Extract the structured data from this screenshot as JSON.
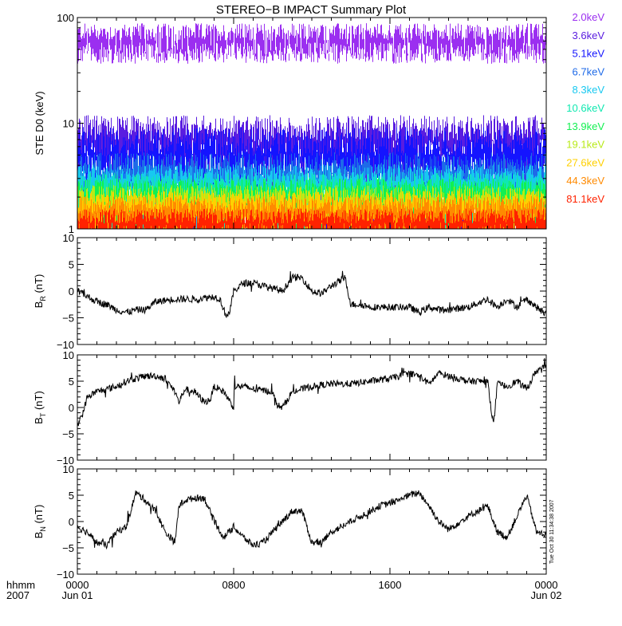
{
  "figure": {
    "title": "STEREO−B IMPACT Summary Plot",
    "timestamp": "Tue Oct 30 11:34:38 2007"
  },
  "xaxis": {
    "row1_label": "hhmm",
    "row2_label": "2007",
    "range_hours": [
      0,
      24
    ],
    "ticks": [
      {
        "hour": 0,
        "label": "0000",
        "sublabel": "Jun 01"
      },
      {
        "hour": 8,
        "label": "0800",
        "sublabel": ""
      },
      {
        "hour": 16,
        "label": "1600",
        "sublabel": ""
      },
      {
        "hour": 24,
        "label": "0000",
        "sublabel": "Jun 02"
      }
    ]
  },
  "chart_data": [
    {
      "type": "line",
      "panel": "ste",
      "ylabel": "STE D0 (keV)",
      "yscale": "log",
      "ylim": [
        1,
        100
      ],
      "yticks": [
        1,
        10,
        100
      ],
      "ytick_labels": [
        "1",
        "10",
        "100"
      ],
      "channels": [
        {
          "name": "2.0keV",
          "color": "#9b2ff0",
          "base": 65,
          "spread": 0.12,
          "dips": 0.4
        },
        {
          "name": "3.6keV",
          "color": "#5a1de0",
          "base": 7.5,
          "spread": 0.18,
          "dips": 0.3
        },
        {
          "name": "5.1keV",
          "color": "#1414ff",
          "base": 5.5,
          "spread": 0.2,
          "dips": 0.3
        },
        {
          "name": "6.7keV",
          "color": "#1e6ae8",
          "base": 3.6,
          "spread": 0.15,
          "dips": 0.3
        },
        {
          "name": "8.3keV",
          "color": "#17c8f0",
          "base": 3.0,
          "spread": 0.12,
          "dips": 0.3
        },
        {
          "name": "10.6keV",
          "color": "#0fe8b0",
          "base": 2.5,
          "spread": 0.12,
          "dips": 0.3
        },
        {
          "name": "13.9keV",
          "color": "#12f050",
          "base": 2.2,
          "spread": 0.12,
          "dips": 0.3
        },
        {
          "name": "19.1keV",
          "color": "#b8ea18",
          "base": 1.9,
          "spread": 0.12,
          "dips": 0.3
        },
        {
          "name": "27.6keV",
          "color": "#ffd000",
          "base": 1.7,
          "spread": 0.12,
          "dips": 0.3
        },
        {
          "name": "44.3keV",
          "color": "#ff8a00",
          "base": 1.5,
          "spread": 0.12,
          "dips": 0.3
        },
        {
          "name": "81.1keV",
          "color": "#ff2200",
          "base": 1.2,
          "spread": 0.1,
          "dips": 0.3
        }
      ]
    },
    {
      "type": "line",
      "panel": "br",
      "ylabel_main": "B",
      "ylabel_sub": "R",
      "ylabel_unit": "(nT)",
      "ylim": [
        -10,
        10
      ],
      "yticks": [
        -10,
        -5,
        0,
        5,
        10
      ],
      "ytick_labels": [
        "−10",
        "−5",
        "0",
        "5",
        "10"
      ],
      "x": [
        0,
        0.5,
        1,
        1.5,
        2,
        2.5,
        3,
        3.5,
        4,
        5,
        6,
        7,
        7.3,
        7.6,
        7.8,
        8,
        8.5,
        9,
        9.5,
        10,
        10.5,
        11,
        11.5,
        12,
        12.5,
        13,
        13.5,
        13.7,
        14,
        14.5,
        15,
        16,
        17,
        17.5,
        18,
        18.5,
        19,
        20,
        21,
        21.5,
        22,
        22.5,
        23,
        23.5,
        24
      ],
      "y": [
        0,
        -1,
        -2,
        -2.5,
        -3.5,
        -4,
        -3.5,
        -3.5,
        -2,
        -1.5,
        -1.5,
        -1,
        -1.5,
        -4.5,
        -4,
        0,
        1.5,
        1.5,
        1,
        0.5,
        0,
        2.5,
        2.5,
        0,
        -0.5,
        1,
        2,
        2.5,
        -2.5,
        -2.5,
        -3,
        -3,
        -3,
        -4,
        -3,
        -3.5,
        -3.5,
        -3,
        -1.5,
        -3,
        -1.5,
        -3,
        -1.5,
        -3,
        -4.5
      ]
    },
    {
      "type": "line",
      "panel": "bt",
      "ylabel_main": "B",
      "ylabel_sub": "T",
      "ylabel_unit": "(nT)",
      "ylim": [
        -10,
        10
      ],
      "yticks": [
        -10,
        -5,
        0,
        5,
        10
      ],
      "ytick_labels": [
        "−10",
        "−5",
        "0",
        "5",
        "10"
      ],
      "x": [
        0,
        0.3,
        0.5,
        1,
        1.5,
        2,
        2.5,
        3,
        3.5,
        4,
        4.5,
        5,
        5.2,
        5.5,
        6,
        6.5,
        6.8,
        7,
        7.5,
        8,
        8,
        8.5,
        9,
        10,
        10.2,
        10.5,
        11,
        11.5,
        12,
        13,
        14,
        15,
        16,
        17,
        17.5,
        18,
        18.5,
        19,
        20,
        21,
        21.3,
        21.5,
        22,
        22.5,
        23,
        23.5,
        24
      ],
      "y": [
        -3,
        -1,
        2,
        3,
        3.5,
        4,
        5,
        5.5,
        6,
        6,
        5.5,
        3,
        1,
        3.5,
        3,
        1,
        1.5,
        4,
        3,
        0,
        4,
        4,
        3.5,
        3,
        0.5,
        0,
        3,
        3.5,
        4,
        4.5,
        4.5,
        5,
        5.5,
        6.5,
        6,
        4.5,
        6.5,
        6,
        5,
        5,
        -3.5,
        4.5,
        4,
        5,
        3.5,
        7,
        8
      ]
    },
    {
      "type": "line",
      "panel": "bn",
      "ylabel_main": "B",
      "ylabel_sub": "N",
      "ylabel_unit": "(nT)",
      "ylim": [
        -10,
        10
      ],
      "yticks": [
        -10,
        -5,
        0,
        5,
        10
      ],
      "ytick_labels": [
        "−10",
        "−5",
        "0",
        "5",
        "10"
      ],
      "x": [
        0,
        0.5,
        1,
        1.5,
        2,
        2.5,
        3,
        3.5,
        4,
        4.5,
        5,
        5.2,
        5.5,
        6,
        6.5,
        7,
        7.5,
        8,
        8.5,
        9,
        9.5,
        10,
        10.5,
        11,
        11.5,
        12,
        12.5,
        13,
        13.5,
        14,
        14.5,
        15,
        15.5,
        16,
        17,
        17.5,
        18,
        18.5,
        19,
        20,
        21,
        21.5,
        22,
        22.5,
        23,
        23.5,
        24
      ],
      "y": [
        -1,
        -2,
        -4,
        -4.5,
        -2,
        -1,
        5.5,
        4,
        2,
        -2,
        -4,
        3,
        4,
        4.5,
        4.5,
        0,
        -3,
        -1,
        -3,
        -4.5,
        -4,
        -2,
        0,
        2,
        2,
        -4,
        -4,
        -2,
        -1,
        0,
        1,
        2,
        3,
        3.5,
        5,
        5.5,
        3,
        0,
        -1.5,
        1,
        3,
        -2,
        -3,
        1,
        5,
        -2,
        -2.5
      ]
    }
  ]
}
